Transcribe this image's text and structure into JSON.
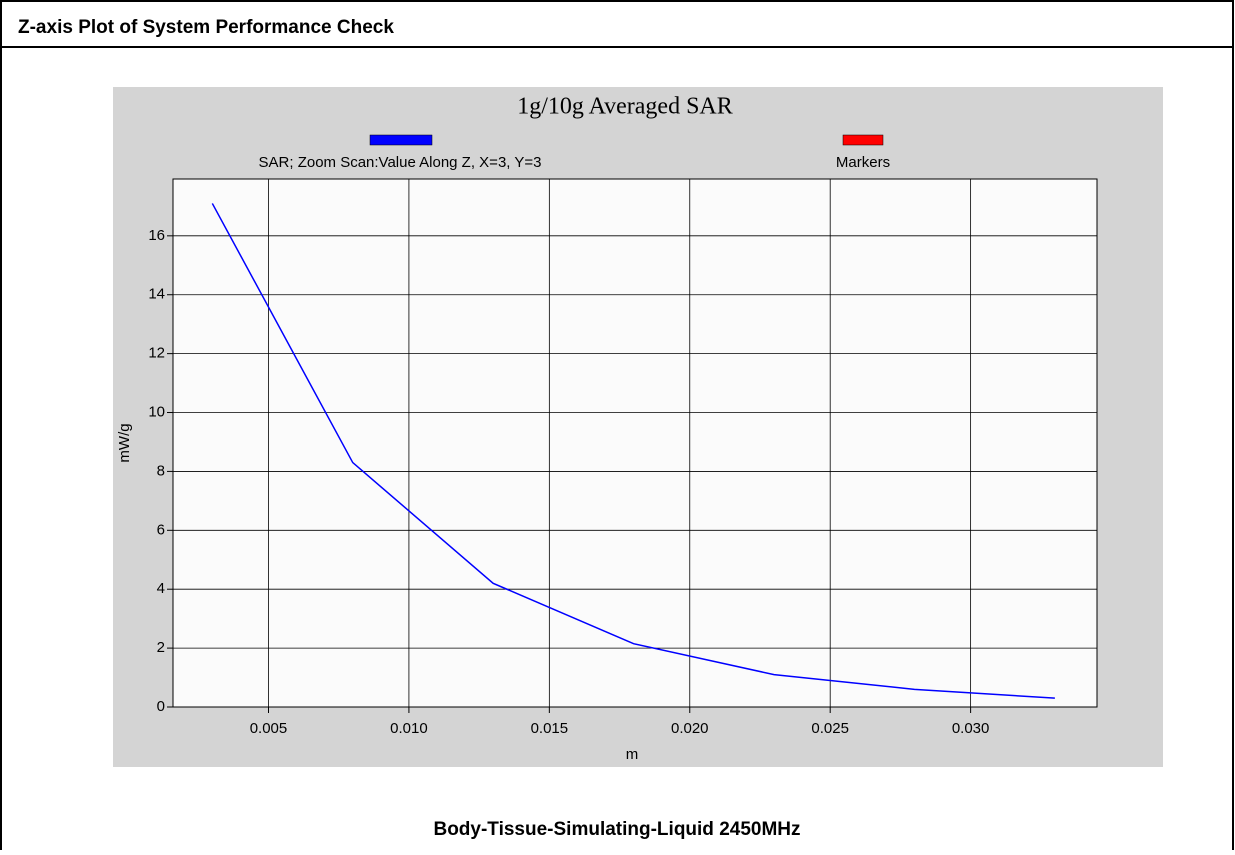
{
  "header": {
    "title": "Z-axis Plot of System Performance Check"
  },
  "chart_data": {
    "type": "line",
    "title": "1g/10g Averaged SAR",
    "x": [
      0.003,
      0.008,
      0.013,
      0.018,
      0.023,
      0.028,
      0.033
    ],
    "series": [
      {
        "name": "SAR; Zoom Scan:Value Along Z, X=3, Y=3",
        "color": "#0000ff",
        "values": [
          17.1,
          8.3,
          4.2,
          2.15,
          1.1,
          0.6,
          0.3
        ]
      },
      {
        "name": "Markers",
        "color": "#ff0000",
        "values": [
          null,
          null,
          null,
          null,
          null,
          null,
          null
        ]
      }
    ],
    "x_label": "m",
    "y_label": "mW/g",
    "xlim": [
      0.0016,
      0.0345
    ],
    "xticks": [
      0.005,
      {
        "value": 0.01,
        "label": "0.010"
      },
      0.015,
      {
        "value": 0.02,
        "label": "0.020"
      },
      0.025,
      {
        "value": 0.03,
        "label": "0.030"
      }
    ],
    "ylim": [
      0,
      17.93
    ],
    "yticks": [
      0,
      2,
      4,
      6,
      8,
      10,
      12,
      14,
      16
    ],
    "grid": true
  },
  "footer": {
    "caption": "Body-Tissue-Simulating-Liquid 2450MHz"
  }
}
